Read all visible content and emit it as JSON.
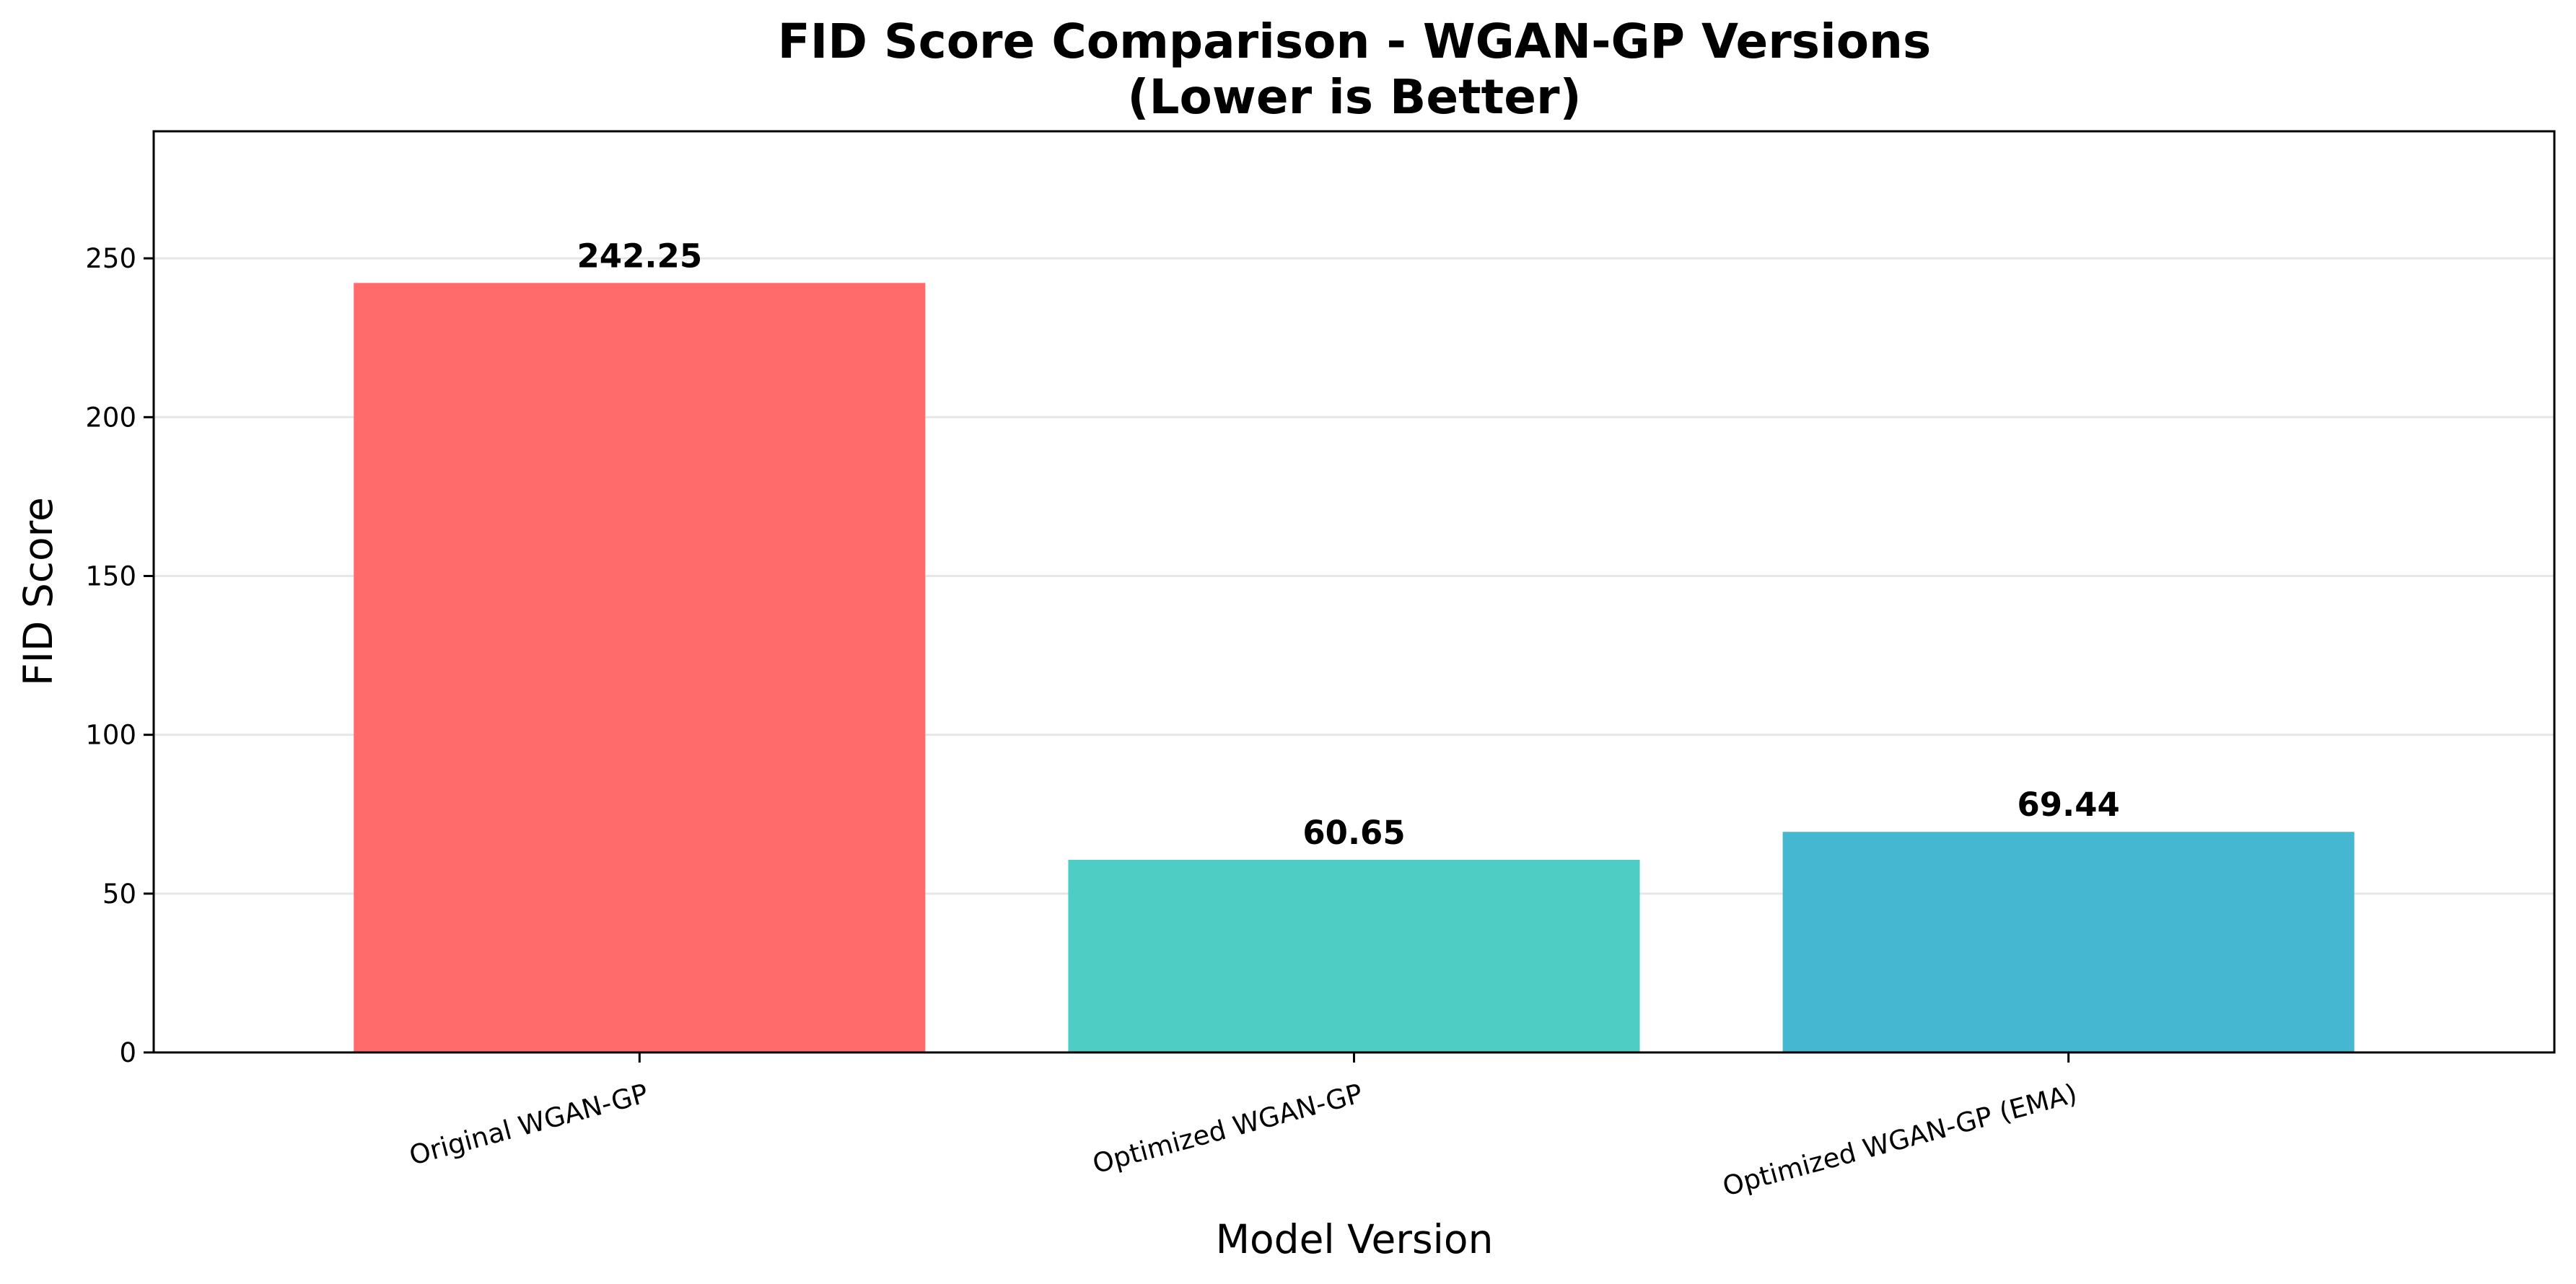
{
  "chart_data": {
    "type": "bar",
    "title": "FID Score Comparison - WGAN-GP Versions",
    "subtitle": "(Lower is Better)",
    "xlabel": "Model Version",
    "ylabel": "FID Score",
    "categories": [
      "Original WGAN-GP",
      "Optimized WGAN-GP",
      "Optimized WGAN-GP (EMA)"
    ],
    "values": [
      242.25,
      60.65,
      69.44
    ],
    "value_labels": [
      "242.25",
      "60.65",
      "69.44"
    ],
    "colors": [
      "#ff6b6b",
      "#4ecdc4",
      "#45b7d1"
    ],
    "ylim": [
      0,
      290
    ],
    "yticks": [
      0,
      50,
      100,
      150,
      200,
      250
    ],
    "ytick_labels": [
      "0",
      "50",
      "100",
      "150",
      "200",
      "250"
    ],
    "grid": "y",
    "legend": "none"
  }
}
